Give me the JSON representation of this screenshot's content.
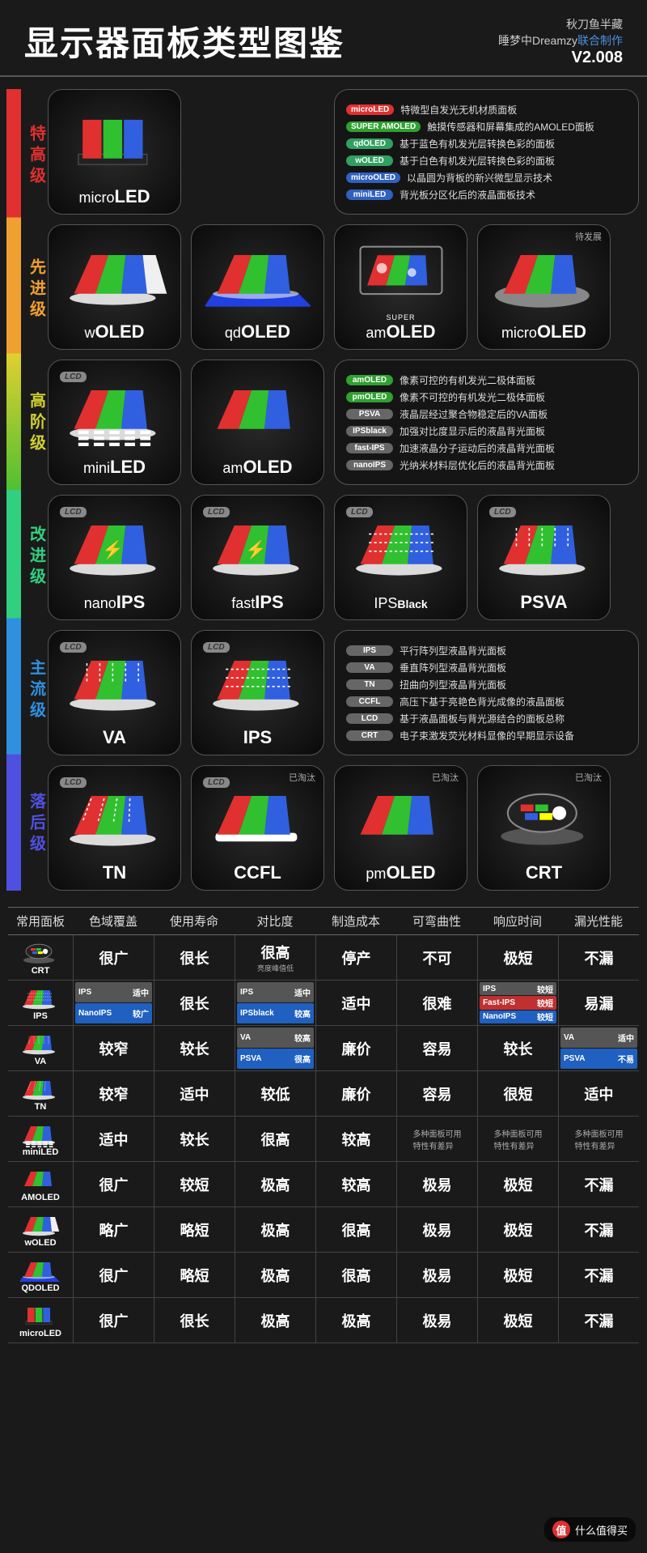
{
  "header": {
    "title": "显示器面板类型图鉴",
    "credit1": "秋刀鱼半藏",
    "credit2a": "睡梦中Dreamzy",
    "credit2b": "联合制作",
    "version": "V2.008"
  },
  "tiers": [
    {
      "label": "特高级",
      "color": "#e03030"
    },
    {
      "label": "先进级",
      "color": "#f0a030"
    },
    {
      "label": "高阶级",
      "color": "#d0d030"
    },
    {
      "label": "改进级",
      "color": "#30d080"
    },
    {
      "label": "主流级",
      "color": "#3090e0"
    },
    {
      "label": "落后级",
      "color": "#5050e0"
    }
  ],
  "panels": {
    "microLED": {
      "pre": "micro",
      "suf": "LED"
    },
    "wOLED": {
      "pre": "w",
      "suf": "OLED"
    },
    "qdOLED": {
      "pre": "qd",
      "suf": "OLED"
    },
    "amOLED_super": {
      "tiny": "SUPER",
      "pre": "am",
      "suf": "OLED"
    },
    "microOLED": {
      "pre": "micro",
      "suf": "OLED",
      "badge": "待发展"
    },
    "miniLED": {
      "pre": "mini",
      "suf": "LED",
      "lcd": true
    },
    "amOLED": {
      "pre": "am",
      "suf": "OLED"
    },
    "nanoIPS": {
      "pre": "nano",
      "suf": "IPS",
      "lcd": true
    },
    "fastIPS": {
      "pre": "fast",
      "suf": "IPS",
      "lcd": true
    },
    "IPSBlack": {
      "pre": "IPS",
      "suf": "Black",
      "lcd": true,
      "sufSmall": true
    },
    "PSVA": {
      "pre": "",
      "suf": "PSVA",
      "lcd": true
    },
    "VA": {
      "pre": "",
      "suf": "VA",
      "lcd": true
    },
    "IPS": {
      "pre": "",
      "suf": "IPS",
      "lcd": true
    },
    "TN": {
      "pre": "",
      "suf": "TN",
      "lcd": true
    },
    "CCFL": {
      "pre": "",
      "suf": "CCFL",
      "lcd": true,
      "badge": "已淘汰"
    },
    "pmOLED": {
      "pre": "pm",
      "suf": "OLED",
      "badge": "已淘汰"
    },
    "CRT": {
      "pre": "",
      "suf": "CRT",
      "badge": "已淘汰"
    }
  },
  "legend1": [
    {
      "tag": "microLED",
      "bg": "#e03030",
      "desc": "特微型自发光无机材质面板"
    },
    {
      "tag": "SUPER AMOLED",
      "bg": "#30a030",
      "desc": "触摸传感器和屏幕集成的AMOLED面板"
    },
    {
      "tag": "qdOLED",
      "bg": "#30a060",
      "desc": "基于蓝色有机发光层转换色彩的面板"
    },
    {
      "tag": "wOLED",
      "bg": "#30a060",
      "desc": "基于白色有机发光层转换色彩的面板"
    },
    {
      "tag": "microOLED",
      "bg": "#3060c0",
      "desc": "以晶圆为背板的新兴微型显示技术"
    },
    {
      "tag": "miniLED",
      "bg": "#3060c0",
      "desc": "背光板分区化后的液晶面板技术"
    }
  ],
  "legend2": [
    {
      "tag": "amOLED",
      "bg": "#30a030",
      "desc": "像素可控的有机发光二极体面板"
    },
    {
      "tag": "pmOLED",
      "bg": "#30a030",
      "desc": "像素不可控的有机发光二极体面板"
    },
    {
      "tag": "PSVA",
      "bg": "#666",
      "desc": "液晶层经过聚合物稳定后的VA面板"
    },
    {
      "tag": "IPSblack",
      "bg": "#666",
      "desc": "加强对比度显示后的液晶背光面板"
    },
    {
      "tag": "fast-IPS",
      "bg": "#666",
      "desc": "加速液晶分子运动后的液晶背光面板"
    },
    {
      "tag": "nanoIPS",
      "bg": "#666",
      "desc": "光纳米材料层优化后的液晶背光面板"
    }
  ],
  "legend3": [
    {
      "tag": "IPS",
      "bg": "#666",
      "desc": "平行阵列型液晶背光面板"
    },
    {
      "tag": "VA",
      "bg": "#666",
      "desc": "垂直阵列型液晶背光面板"
    },
    {
      "tag": "TN",
      "bg": "#666",
      "desc": "扭曲向列型液晶背光面板"
    },
    {
      "tag": "CCFL",
      "bg": "#666",
      "desc": "高压下基于亮艳色背光成像的液晶面板"
    },
    {
      "tag": "LCD",
      "bg": "#666",
      "desc": "基于液晶面板与背光源结合的面板总称"
    },
    {
      "tag": "CRT",
      "bg": "#666",
      "desc": "电子束激发荧光材料显像的早期显示设备"
    }
  ],
  "table": {
    "headers": [
      "常用面板",
      "色域覆盖",
      "使用寿命",
      "对比度",
      "制造成本",
      "可弯曲性",
      "响应时间",
      "漏光性能"
    ],
    "rows": [
      {
        "label": "CRT",
        "cells": [
          "很广",
          "很长",
          {
            "main": "很高",
            "sub": "亮度峰值低"
          },
          "停产",
          "不可",
          "极短",
          "不漏"
        ]
      },
      {
        "label": "IPS",
        "cells": [
          {
            "split": [
              {
                "l": "IPS",
                "r": "适中",
                "bg": "#555"
              },
              {
                "l": "NanoIPS",
                "r": "较广",
                "bg": "#2060c0"
              }
            ]
          },
          "很长",
          {
            "split": [
              {
                "l": "IPS",
                "r": "适中",
                "bg": "#555"
              },
              {
                "l": "IPSblack",
                "r": "较高",
                "bg": "#2060c0"
              }
            ]
          },
          "适中",
          "很难",
          {
            "split": [
              {
                "l": "IPS",
                "r": "较短",
                "bg": "#555"
              },
              {
                "l": "Fast-IPS",
                "r": "较短",
                "bg": "#c03030"
              },
              {
                "l": "NanoIPS",
                "r": "较短",
                "bg": "#2060c0"
              }
            ]
          },
          "易漏"
        ]
      },
      {
        "label": "VA",
        "cells": [
          "较窄",
          "较长",
          {
            "split": [
              {
                "l": "VA",
                "r": "较高",
                "bg": "#555"
              },
              {
                "l": "PSVA",
                "r": "很高",
                "bg": "#2060c0"
              }
            ]
          },
          "廉价",
          "容易",
          "较长",
          {
            "split": [
              {
                "l": "VA",
                "r": "适中",
                "bg": "#555"
              },
              {
                "l": "PSVA",
                "r": "不易",
                "bg": "#2060c0"
              }
            ]
          }
        ]
      },
      {
        "label": "TN",
        "cells": [
          "较窄",
          "适中",
          "较低",
          "廉价",
          "容易",
          "很短",
          "适中"
        ]
      },
      {
        "label": "miniLED",
        "cells": [
          "适中",
          "较长",
          "很高",
          "较高",
          {
            "sub": "多种面板可用\n特性有差异"
          },
          {
            "sub": "多种面板可用\n特性有差异"
          },
          {
            "sub": "多种面板可用\n特性有差异"
          }
        ]
      },
      {
        "label": "AMOLED",
        "cells": [
          "很广",
          "较短",
          "极高",
          "较高",
          "极易",
          "极短",
          "不漏"
        ]
      },
      {
        "label": "wOLED",
        "cells": [
          "略广",
          "略短",
          "极高",
          "很高",
          "极易",
          "极短",
          "不漏"
        ]
      },
      {
        "label": "QDOLED",
        "cells": [
          "很广",
          "略短",
          "极高",
          "很高",
          "极易",
          "极短",
          "不漏"
        ]
      },
      {
        "label": "microLED",
        "cells": [
          "很广",
          "很长",
          "极高",
          "极高",
          "极易",
          "极短",
          "不漏"
        ]
      }
    ]
  },
  "watermark": {
    "icon": "值",
    "text": "什么值得买"
  },
  "colors": {
    "red": "#e03030",
    "green": "#30c030",
    "blue": "#3060e0",
    "white": "#f0f0f0",
    "glow": "#ffffff"
  }
}
